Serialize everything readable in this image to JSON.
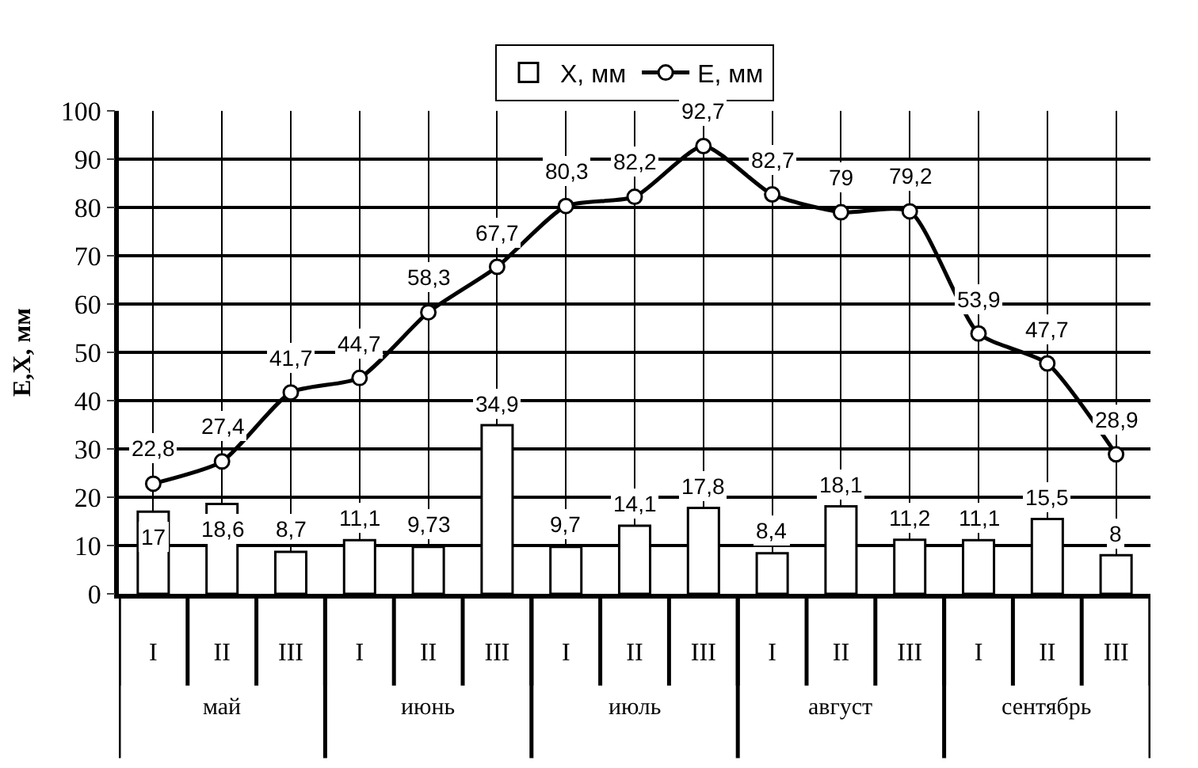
{
  "chart_data": {
    "type": "bar",
    "ylabel": "E,X, мм",
    "categories": [
      "I",
      "II",
      "III",
      "I",
      "II",
      "III",
      "I",
      "II",
      "III",
      "I",
      "II",
      "III",
      "I",
      "II",
      "III"
    ],
    "annotations": [
      "май",
      "июнь",
      "июль",
      "август",
      "сентябрь"
    ],
    "series": [
      {
        "name": "X, мм",
        "color": "#ffffff",
        "values": [
          17,
          18.6,
          8.7,
          11.1,
          9.73,
          34.9,
          9.7,
          14.1,
          17.8,
          8.4,
          18.1,
          11.2,
          11.1,
          15.5,
          8
        ],
        "value_labels": [
          "17",
          "18,6",
          "8,7",
          "11,1",
          "9,73",
          "34,9",
          "9,7",
          "14,1",
          "17,8",
          "8,4",
          "18,1",
          "11,2",
          "11,1",
          "15,5",
          "8"
        ]
      },
      {
        "name": "E, мм",
        "type": "line",
        "color": "#000000",
        "marker": "circle",
        "line_style": "solid",
        "values": [
          22.8,
          27.4,
          41.7,
          44.7,
          58.3,
          67.7,
          80.3,
          82.2,
          92.7,
          82.7,
          79,
          79.2,
          53.9,
          47.7,
          28.9
        ],
        "value_labels": [
          "22,8",
          "27,4",
          "41,7",
          "44,7",
          "58,3",
          "67,7",
          "80,3",
          "82,2",
          "92,7",
          "82,7",
          "79",
          "79,2",
          "53,9",
          "47,7",
          "28,9"
        ]
      }
    ],
    "ylim": [
      0,
      100
    ],
    "yticks": [
      0,
      10,
      20,
      30,
      40,
      50,
      60,
      70,
      80,
      90,
      100
    ],
    "grid": true,
    "legend": "top"
  }
}
